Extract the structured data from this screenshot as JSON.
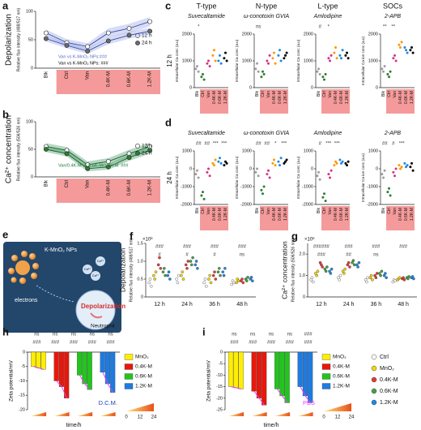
{
  "chart_data": [
    {
      "type": "line",
      "panel": "a",
      "title": "Depolarization",
      "ylabel": "Relative fluo intensity (488/517 nm)",
      "categories": [
        "Blk",
        "Ctrl",
        "Van",
        "0.4K-M",
        "0.6K-M",
        "1.2K-M"
      ],
      "series": [
        {
          "name": "12 h",
          "color": "#ffffff",
          "values": [
            62,
            45,
            38,
            62,
            70,
            82
          ],
          "errors": [
            6,
            6,
            6,
            8,
            8,
            8
          ]
        },
        {
          "name": "24 h",
          "color": "#6b6b6b",
          "values": [
            52,
            40,
            30,
            48,
            58,
            65
          ],
          "errors": [
            5,
            5,
            5,
            6,
            6,
            6
          ]
        }
      ],
      "band_color": "#8a9ae0",
      "line_color": "#3949ab",
      "ylim": [
        0,
        100
      ],
      "yticks": [
        0,
        50,
        100
      ],
      "annotations": [
        "Van vs K-MnO₂ NPs:###",
        "Van vs K-MnO₂ NPs: ###"
      ],
      "annotation_colors": [
        "#5c6bc0",
        "#000000"
      ]
    },
    {
      "type": "line",
      "panel": "b",
      "title": "Ca²⁺ concentration",
      "ylabel": "Relative fluo intensity (506/526 nm)",
      "categories": [
        "Blk",
        "Ctrl",
        "Van",
        "0.4K-M",
        "0.6K-M",
        "1.2K-M"
      ],
      "series": [
        {
          "name": "12 h",
          "color": "#ffffff",
          "values": [
            55,
            48,
            22,
            28,
            42,
            55
          ],
          "errors": [
            6,
            6,
            6,
            6,
            7,
            7
          ]
        },
        {
          "name": "24 h",
          "color": "#2e7d32",
          "values": [
            50,
            42,
            15,
            18,
            35,
            48
          ],
          "errors": [
            5,
            5,
            5,
            5,
            6,
            6
          ]
        }
      ],
      "band_color": "#2e8b57",
      "line_color": "#1b5e20",
      "ylim": [
        0,
        100
      ],
      "yticks": [
        0,
        50,
        100
      ],
      "annotations": [
        "Van/0.4K-M vs 0.6K-M/1.2K-M: ###"
      ],
      "annotation_colors": [
        "#1b7a3a"
      ]
    },
    {
      "type": "strip",
      "panel": "c",
      "header": "T-type",
      "title": "Suvecaltamide",
      "row_label": "12 h",
      "ylabel": "Intracellular Ca conc (a.u)",
      "categories": [
        "Blk",
        "Ctrl",
        "Van",
        "0.4K-M",
        "0.6K-M",
        "1.2K-M"
      ],
      "colors": [
        "#9e9e9e",
        "#2e7d32",
        "#d63384",
        "#ff9800",
        "#1e88e5",
        "#000000"
      ],
      "values": [
        [
          700,
          800,
          600
        ],
        [
          400,
          500,
          300
        ],
        [
          900,
          1000,
          800
        ],
        [
          1200,
          1400,
          1000
        ],
        [
          1000,
          1200,
          900
        ],
        [
          1100,
          1300,
          1000
        ]
      ],
      "ylim": [
        0,
        2000
      ],
      "yticks": [
        0,
        1000,
        2000
      ],
      "annotations": [
        "*"
      ]
    },
    {
      "type": "strip",
      "header": "N-type",
      "title": "ω-conotoxin GVIA",
      "ylabel": "Intracellular Ca conc (a.u)",
      "categories": [
        "Blk",
        "Ctrl",
        "Van",
        "0.4K-M",
        "0.6K-M",
        "1.2K-M"
      ],
      "colors": [
        "#9e9e9e",
        "#2e7d32",
        "#d63384",
        "#ff9800",
        "#1e88e5",
        "#000000"
      ],
      "values": [
        [
          700,
          900,
          600
        ],
        [
          400,
          600,
          500
        ],
        [
          1000,
          900,
          1200
        ],
        [
          1100,
          1300,
          900
        ],
        [
          1200,
          1400,
          1000
        ],
        [
          1100,
          1200,
          1300
        ]
      ],
      "ylim": [
        0,
        2000
      ],
      "yticks": [
        0,
        1000,
        2000
      ],
      "annotations": [
        "ns"
      ]
    },
    {
      "type": "strip",
      "header": "L-type",
      "title": "Amlodipine",
      "ylabel": "Intracellular Ca conc (a.u)",
      "categories": [
        "Blk",
        "Ctrl",
        "Van",
        "0.4K-M",
        "0.6K-M",
        "1.2K-M"
      ],
      "colors": [
        "#9e9e9e",
        "#2e7d32",
        "#d63384",
        "#ff9800",
        "#1e88e5",
        "#000000"
      ],
      "values": [
        [
          600,
          700,
          500
        ],
        [
          400,
          300,
          500
        ],
        [
          1100,
          1000,
          1200
        ],
        [
          1300,
          1500,
          1100
        ],
        [
          1200,
          1100,
          1400
        ],
        [
          1200,
          1300,
          1100
        ]
      ],
      "ylim": [
        0,
        2000
      ],
      "yticks": [
        0,
        1000,
        2000
      ],
      "annotations": [
        "#",
        "*"
      ]
    },
    {
      "type": "strip",
      "header": "SOCs",
      "title": "2-APB",
      "ylabel": "Intracellular Ca ion conc (a.u)",
      "categories": [
        "Blk",
        "Ctrl",
        "Van",
        "0.4K-M",
        "0.6K-M",
        "1.2K-M"
      ],
      "colors": [
        "#9e9e9e",
        "#2e7d32",
        "#d63384",
        "#ff9800",
        "#1e88e5",
        "#000000"
      ],
      "values": [
        [
          700,
          600,
          800
        ],
        [
          500,
          400,
          600
        ],
        [
          1100,
          1200,
          1000
        ],
        [
          1600,
          1500,
          1700
        ],
        [
          1500,
          1400,
          1300
        ],
        [
          1400,
          1500,
          1300
        ]
      ],
      "ylim": [
        0,
        2000
      ],
      "yticks": [
        0,
        1000,
        2000
      ],
      "annotations": [
        "**",
        "**"
      ]
    },
    {
      "type": "strip",
      "panel": "d",
      "title": "Suvecaltamide",
      "row_label": "24 h",
      "ylabel": "Intracellular Ca conc (a.u)",
      "categories": [
        "Blk",
        "Ctrl",
        "Van",
        "0.4K-M",
        "0.6K-M",
        "1.2K-M"
      ],
      "colors": [
        "#9e9e9e",
        "#2e7d32",
        "#d63384",
        "#ff9800",
        "#1e88e5",
        "#000000"
      ],
      "values": [
        [
          -300,
          -100,
          -500
        ],
        [
          -1500,
          -1300,
          -1700
        ],
        [
          -200,
          0,
          -400
        ],
        [
          300,
          200,
          500
        ],
        [
          400,
          600,
          300
        ],
        [
          200,
          400,
          300
        ]
      ],
      "ylim": [
        -2000,
        1000
      ],
      "yticks": [
        -2000,
        -1000,
        0,
        1000
      ],
      "annotations": [
        "##",
        "##",
        "***",
        "***"
      ]
    },
    {
      "type": "strip",
      "title": "ω-conotoxin GVIA",
      "ylabel": "Intracellular Ca conc (a.u)",
      "categories": [
        "Blk",
        "Ctrl",
        "Van",
        "0.4K-M",
        "0.6K-M",
        "1.2K-M"
      ],
      "colors": [
        "#9e9e9e",
        "#2e7d32",
        "#d63384",
        "#ff9800",
        "#1e88e5",
        "#000000"
      ],
      "values": [
        [
          -200,
          0,
          -400
        ],
        [
          -1200,
          -1400,
          -1000
        ],
        [
          -300,
          -100,
          -500
        ],
        [
          300,
          500,
          200
        ],
        [
          400,
          200,
          600
        ],
        [
          300,
          400,
          500
        ]
      ],
      "ylim": [
        -2000,
        1000
      ],
      "yticks": [
        -2000,
        -1000,
        0,
        1000
      ],
      "annotations": [
        "##",
        "##",
        "*",
        "***"
      ]
    },
    {
      "type": "strip",
      "title": "Amlodipine",
      "ylabel": "Intracellular Ca conc (a.u)",
      "categories": [
        "Blk",
        "Ctrl",
        "Van",
        "0.4K-M",
        "0.6K-M",
        "1.2K-M"
      ],
      "colors": [
        "#9e9e9e",
        "#2e7d32",
        "#d63384",
        "#ff9800",
        "#1e88e5",
        "#000000"
      ],
      "values": [
        [
          -400,
          -200,
          -600
        ],
        [
          -1600,
          -1400,
          -1800
        ],
        [
          -300,
          -500,
          -100
        ],
        [
          200,
          400,
          300
        ],
        [
          500,
          300,
          400
        ],
        [
          300,
          200,
          400
        ]
      ],
      "ylim": [
        -2000,
        1000
      ],
      "yticks": [
        -2000,
        -1000,
        0,
        1000
      ],
      "annotations": [
        "#",
        "***",
        "***"
      ]
    },
    {
      "type": "strip",
      "title": "2-APB",
      "ylabel": "Intracellular Ca ion conc (a.u)",
      "categories": [
        "Blk",
        "Ctrl",
        "Van",
        "0.4K-M",
        "0.6K-M",
        "1.2K-M"
      ],
      "colors": [
        "#9e9e9e",
        "#2e7d32",
        "#d63384",
        "#ff9800",
        "#1e88e5",
        "#000000"
      ],
      "values": [
        [
          -300,
          -500,
          -100
        ],
        [
          -1300,
          -1100,
          -1500
        ],
        [
          -200,
          -400,
          0
        ],
        [
          200,
          0,
          100
        ],
        [
          300,
          100,
          200
        ],
        [
          100,
          300,
          -100
        ]
      ],
      "ylim": [
        -2000,
        1000
      ],
      "yticks": [
        -2000,
        -1000,
        0,
        1000
      ],
      "annotations": [
        "##",
        "#",
        "***"
      ]
    },
    {
      "type": "grouped-strip",
      "panel": "f",
      "title": "Depolarization",
      "ylabel": "Relative fluo intensity (488/517 nm)",
      "scale_label": "×10⁸",
      "categories": [
        "12 h",
        "24 h",
        "36 h",
        "48 h"
      ],
      "series": [
        {
          "name": "Ctrl",
          "color": "#ffffff",
          "values": [
            [
              0.4,
              0.5,
              0.3
            ],
            [
              0.5,
              0.4,
              0.6
            ],
            [
              0.4,
              0.5,
              0.3
            ],
            [
              0.35,
              0.45,
              0.4
            ]
          ]
        },
        {
          "name": "MnO₂",
          "color": "#f5d800",
          "values": [
            [
              0.6,
              0.5,
              0.7
            ],
            [
              0.6,
              0.7,
              0.5
            ],
            [
              0.5,
              0.6,
              0.4
            ],
            [
              0.4,
              0.5,
              0.45
            ]
          ]
        },
        {
          "name": "0.4K-M",
          "color": "#e53935",
          "values": [
            [
              0.9,
              1.1,
              0.8
            ],
            [
              0.9,
              0.8,
              1.0
            ],
            [
              0.6,
              0.7,
              0.5
            ],
            [
              0.45,
              0.5,
              0.4
            ]
          ]
        },
        {
          "name": "0.6K-M",
          "color": "#43a047",
          "values": [
            [
              0.7,
              0.8,
              0.6
            ],
            [
              1.0,
              0.9,
              1.1
            ],
            [
              0.7,
              0.8,
              0.6
            ],
            [
              0.5,
              0.45,
              0.55
            ]
          ]
        },
        {
          "name": "1.2K-M",
          "color": "#1e88e5",
          "values": [
            [
              0.6,
              0.7,
              0.5
            ],
            [
              0.9,
              1.0,
              0.8
            ],
            [
              0.7,
              0.6,
              0.8
            ],
            [
              0.5,
              0.55,
              0.45
            ]
          ]
        }
      ],
      "ylim": [
        0,
        1.5
      ],
      "yticks": [
        0,
        0.5,
        {
          "value": 1,
          "label": "1.0"
        },
        1.5
      ],
      "annotations": [
        "###",
        "###",
        "###",
        "###",
        "#",
        "#",
        "#",
        "ns"
      ]
    },
    {
      "type": "grouped-strip",
      "panel": "g",
      "title": "Ca²⁺ concentration",
      "ylabel": "Relative fluo intensity (506/526 nm)",
      "scale_label": "×10⁸",
      "categories": [
        "12 h",
        "24 h",
        "36 h",
        "48 h"
      ],
      "series": [
        {
          "name": "Ctrl",
          "color": "#ffffff",
          "values": [
            [
              0.8,
              0.9,
              0.7
            ],
            [
              0.9,
              0.8,
              1.0
            ],
            [
              0.8,
              0.7,
              0.9
            ],
            [
              0.7,
              0.8,
              0.75
            ]
          ]
        },
        {
          "name": "MnO₂",
          "color": "#f5d800",
          "values": [
            [
              1.1,
              1.0,
              1.2
            ],
            [
              1.2,
              1.1,
              1.3
            ],
            [
              0.9,
              1.0,
              0.8
            ],
            [
              0.8,
              0.85,
              0.9
            ]
          ]
        },
        {
          "name": "0.4K-M",
          "color": "#e53935",
          "values": [
            [
              1.6,
              1.5,
              1.4
            ],
            [
              1.5,
              1.6,
              1.4
            ],
            [
              1.0,
              0.9,
              1.1
            ],
            [
              0.85,
              0.9,
              0.8
            ]
          ]
        },
        {
          "name": "0.6K-M",
          "color": "#43a047",
          "values": [
            [
              1.3,
              1.2,
              1.4
            ],
            [
              1.6,
              1.7,
              1.5
            ],
            [
              1.1,
              1.0,
              1.2
            ],
            [
              0.9,
              0.85,
              0.95
            ]
          ]
        },
        {
          "name": "1.2K-M",
          "color": "#1e88e5",
          "values": [
            [
              1.2,
              1.1,
              1.3
            ],
            [
              1.5,
              1.4,
              1.6
            ],
            [
              1.0,
              1.1,
              0.9
            ],
            [
              0.9,
              0.95,
              0.85
            ]
          ]
        }
      ],
      "ylim": [
        0,
        2.5
      ],
      "yticks": [
        0,
        {
          "value": 1,
          "label": "1.0"
        },
        {
          "value": 2,
          "label": "2.0"
        }
      ],
      "annotations": [
        "######",
        "###",
        "###",
        "###",
        "###",
        "##",
        "ns"
      ]
    },
    {
      "type": "grouped-bar",
      "panel": "h",
      "ylabel": "Zeta potential/mV",
      "xlabel": "time/h",
      "note": "D.C.M.",
      "note_color": "#1a3fbf",
      "series": [
        {
          "name": "MnO₂",
          "color": "#ffee00",
          "values": [
            -5,
            -5.5,
            -6
          ]
        },
        {
          "name": "0.4K-M",
          "color": "#e8170b",
          "values": [
            -10,
            -12,
            -16
          ]
        },
        {
          "name": "0.6K-M",
          "color": "#22c51e",
          "values": [
            -8,
            -11,
            -13
          ]
        },
        {
          "name": "1.2K-M",
          "color": "#1e7be0",
          "values": [
            -7,
            -11,
            -14
          ]
        }
      ],
      "time_points": [
        0,
        12,
        24
      ],
      "line_color": "#e040fb",
      "ylim": [
        -20,
        0
      ],
      "yticks": [
        -20,
        -15,
        -10,
        -5,
        0
      ],
      "annotations": [
        "ns",
        "ns",
        "ns",
        "ns",
        "ns",
        "###",
        "###",
        "###",
        "###",
        "###"
      ]
    },
    {
      "type": "grouped-bar",
      "panel": "i",
      "ylabel": "Zeta potential/mV",
      "xlabel": "time/h",
      "note": "PBS",
      "note_color": "#e040fb",
      "series": [
        {
          "name": "MnO₂",
          "color": "#ffee00",
          "values": [
            -15,
            -15.5,
            -16
          ]
        },
        {
          "name": "0.4K-M",
          "color": "#e8170b",
          "values": [
            -17,
            -20,
            -23
          ]
        },
        {
          "name": "0.6K-M",
          "color": "#22c51e",
          "values": [
            -16,
            -19,
            -22
          ]
        },
        {
          "name": "1.2K-M",
          "color": "#1e7be0",
          "values": [
            -15,
            -19,
            -22
          ]
        }
      ],
      "time_points": [
        0,
        12,
        24
      ],
      "line_color": "#e040fb",
      "ylim": [
        -25,
        0
      ],
      "yticks": [
        -25,
        -20,
        -15,
        -10,
        -5,
        0
      ],
      "annotations": [
        "ns",
        "ns",
        "ns",
        "ns",
        "###",
        "###",
        "###",
        "###",
        "###",
        "###"
      ]
    }
  ],
  "panel_e": {
    "panel": "e",
    "particles": "K-MnO₂ NPs",
    "electrons": "electrons",
    "effect": "Depolarization",
    "cell": "Neutrophil",
    "ion": "Ca²⁺"
  }
}
